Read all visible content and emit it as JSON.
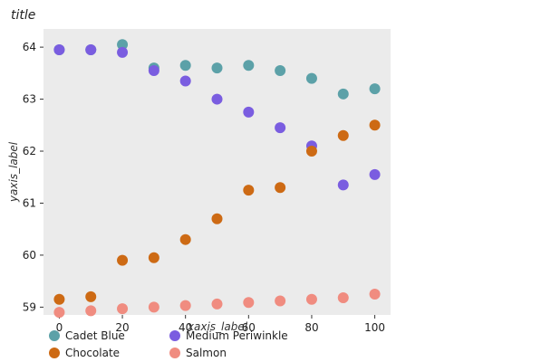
{
  "chart_data": {
    "type": "scatter",
    "title": "title",
    "xlabel": "xaxis_label",
    "ylabel": "yaxis_label",
    "xlim": [
      -5,
      105
    ],
    "ylim": [
      58.85,
      64.35
    ],
    "x_ticks": [
      0,
      20,
      40,
      60,
      80,
      100
    ],
    "y_ticks": [
      59,
      60,
      61,
      62,
      63,
      64
    ],
    "grid": false,
    "background": "#ebebeb",
    "legend_position": "bottom",
    "series": [
      {
        "name": "Cadet Blue",
        "color": "#5ca1a8",
        "x": [
          0,
          10,
          20,
          30,
          40,
          50,
          60,
          70,
          80,
          90,
          100
        ],
        "y": [
          63.95,
          63.95,
          64.05,
          63.6,
          63.65,
          63.6,
          63.65,
          63.55,
          63.4,
          63.1,
          63.2
        ]
      },
      {
        "name": "Medium Periwinkle",
        "color": "#7a5de0",
        "x": [
          0,
          10,
          20,
          30,
          40,
          50,
          60,
          70,
          80,
          90,
          100
        ],
        "y": [
          63.95,
          63.95,
          63.9,
          63.55,
          63.35,
          63.0,
          62.75,
          62.45,
          62.1,
          61.35,
          61.55
        ]
      },
      {
        "name": "Chocolate",
        "color": "#cd6a14",
        "x": [
          0,
          10,
          20,
          30,
          40,
          50,
          60,
          70,
          80,
          90,
          100
        ],
        "y": [
          59.15,
          59.2,
          59.9,
          59.95,
          60.3,
          60.7,
          61.25,
          61.3,
          62.0,
          62.3,
          62.5
        ]
      },
      {
        "name": "Salmon",
        "color": "#f08c80",
        "x": [
          0,
          10,
          20,
          30,
          40,
          50,
          60,
          70,
          80,
          90,
          100
        ],
        "y": [
          58.9,
          58.93,
          58.97,
          59.0,
          59.03,
          59.06,
          59.09,
          59.12,
          59.15,
          59.18,
          59.25
        ]
      }
    ]
  }
}
